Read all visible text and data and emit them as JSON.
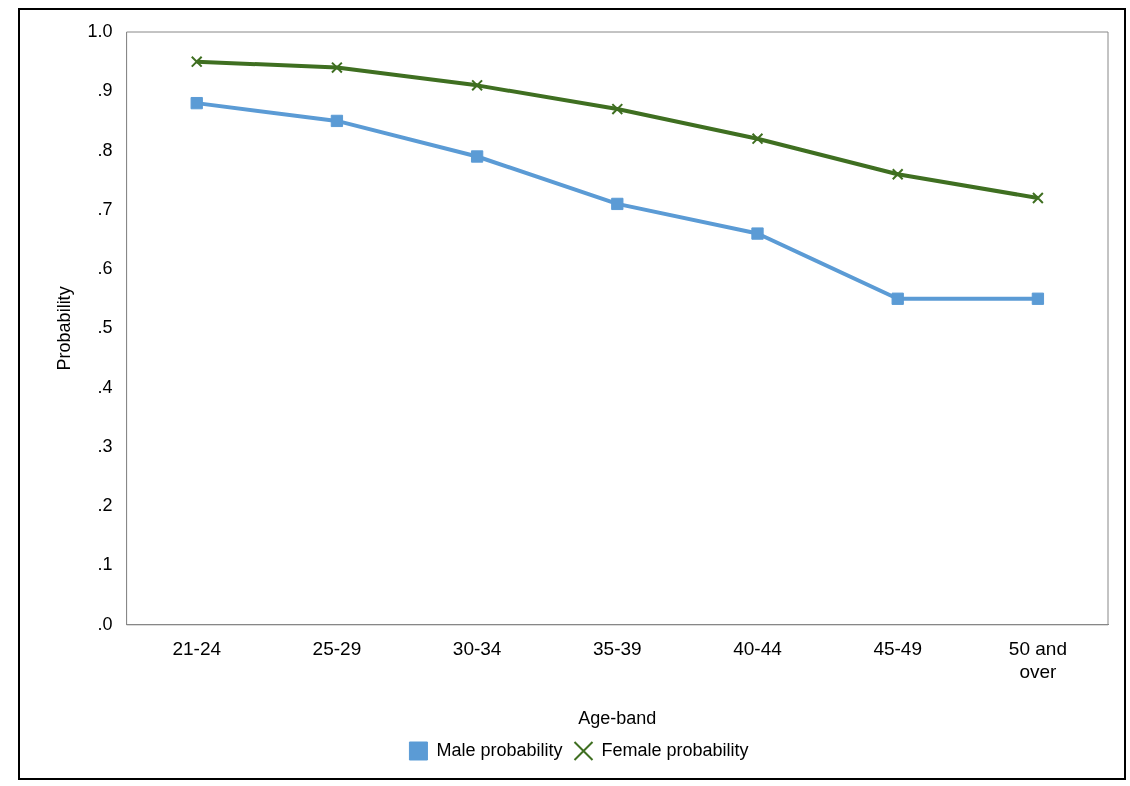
{
  "chart_data": {
    "type": "line",
    "xlabel": "Age-band",
    "ylabel": "Probability",
    "categories": [
      "21-24",
      "25-29",
      "30-34",
      "35-39",
      "40-44",
      "45-49",
      "50 and over"
    ],
    "series": [
      {
        "name": "Male probability",
        "color": "#5b9bd5",
        "marker": "square",
        "values": [
          0.88,
          0.85,
          0.79,
          0.71,
          0.66,
          0.55,
          0.55
        ]
      },
      {
        "name": "Female probability",
        "color": "#3f6f21",
        "marker": "cross",
        "values": [
          0.95,
          0.94,
          0.91,
          0.87,
          0.82,
          0.76,
          0.72
        ]
      }
    ],
    "ylim": [
      0,
      1
    ],
    "yticks": [
      {
        "value": 0,
        "label": ".0"
      },
      {
        "value": 0.1,
        "label": ".1"
      },
      {
        "value": 0.2,
        "label": ".2"
      },
      {
        "value": 0.3,
        "label": ".3"
      },
      {
        "value": 0.4,
        "label": ".4"
      },
      {
        "value": 0.5,
        "label": ".5"
      },
      {
        "value": 0.6,
        "label": ".6"
      },
      {
        "value": 0.7,
        "label": ".7"
      },
      {
        "value": 0.8,
        "label": ".8"
      },
      {
        "value": 0.9,
        "label": ".9"
      },
      {
        "value": 1,
        "label": "1.0"
      }
    ],
    "grid": false,
    "legend": "bottom",
    "line_style": "solid"
  }
}
